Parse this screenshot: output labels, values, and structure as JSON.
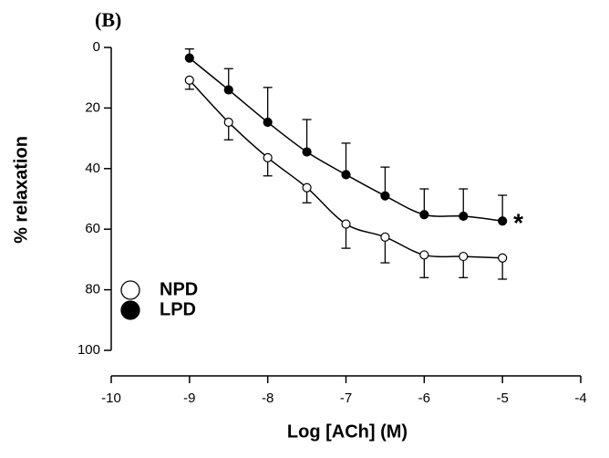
{
  "chart_data": {
    "type": "scatter",
    "panel_label": "(B)",
    "x_label": "Log [ACh] (M)",
    "y_label": "% relaxation",
    "annotation": "*",
    "xlim": [
      -10,
      -4
    ],
    "xticks": [
      -10,
      -9,
      -8,
      -7,
      -6,
      -5,
      -4
    ],
    "ylim": [
      0,
      100
    ],
    "yticks": [
      0,
      20,
      40,
      60,
      80,
      100
    ],
    "y_inverted": true,
    "x": [
      -9,
      -8.5,
      -8,
      -7.5,
      -7,
      -6.5,
      -6,
      -5.5,
      -5
    ],
    "series": [
      {
        "name": "NPD",
        "color": "#ffffff",
        "error_side": "plus",
        "values": [
          10.8,
          24.7,
          36.4,
          46.3,
          58.3,
          62.6,
          68.5,
          69,
          69.5
        ],
        "errors": [
          3,
          5.8,
          6,
          5,
          8,
          8.5,
          7.5,
          7,
          7
        ]
      },
      {
        "name": "LPD",
        "color": "#000000",
        "error_side": "minus",
        "values": [
          3.5,
          14,
          24.7,
          34.5,
          42,
          49,
          55.2,
          55.7,
          57.3
        ],
        "errors": [
          3,
          7,
          11.5,
          10.7,
          10.4,
          9.5,
          8.5,
          9,
          8.5
        ]
      }
    ]
  }
}
